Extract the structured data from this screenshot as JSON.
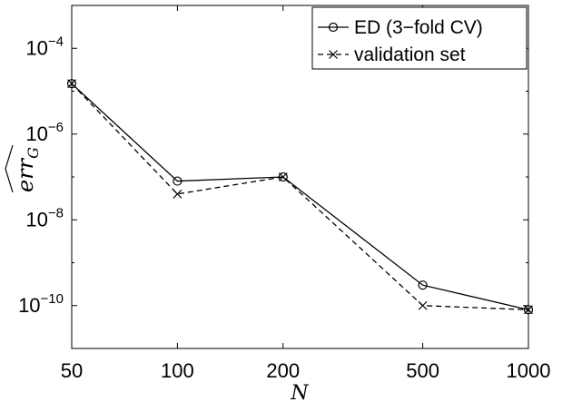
{
  "chart_data": {
    "type": "line",
    "xscale": "log",
    "yscale": "log",
    "x": [
      50,
      100,
      200,
      500,
      1000
    ],
    "xticks": [
      50,
      100,
      200,
      500,
      1000
    ],
    "xtick_labels": [
      "50",
      "100",
      "200",
      "500",
      "1000"
    ],
    "xlim": [
      50,
      1000
    ],
    "ylim": [
      1e-11,
      0.001
    ],
    "yticks": [
      {
        "value": 1e-10,
        "base": "10",
        "exp": "−10"
      },
      {
        "value": 1e-08,
        "base": "10",
        "exp": "−8"
      },
      {
        "value": 1e-06,
        "base": "10",
        "exp": "−6"
      },
      {
        "value": 0.0001,
        "base": "10",
        "exp": "−4"
      }
    ],
    "xlabel": "N",
    "ylabel": "err_G (hat)",
    "grid": false,
    "legend_position": "top-right",
    "series": [
      {
        "name": "ED (3−fold CV)",
        "marker": "circle",
        "linestyle": "solid",
        "values": [
          1.5e-05,
          8e-08,
          1e-07,
          3e-10,
          8e-11
        ]
      },
      {
        "name": "validation set",
        "marker": "x",
        "linestyle": "dashed",
        "values": [
          1.5e-05,
          4e-08,
          1e-07,
          1e-10,
          8e-11
        ]
      }
    ]
  }
}
